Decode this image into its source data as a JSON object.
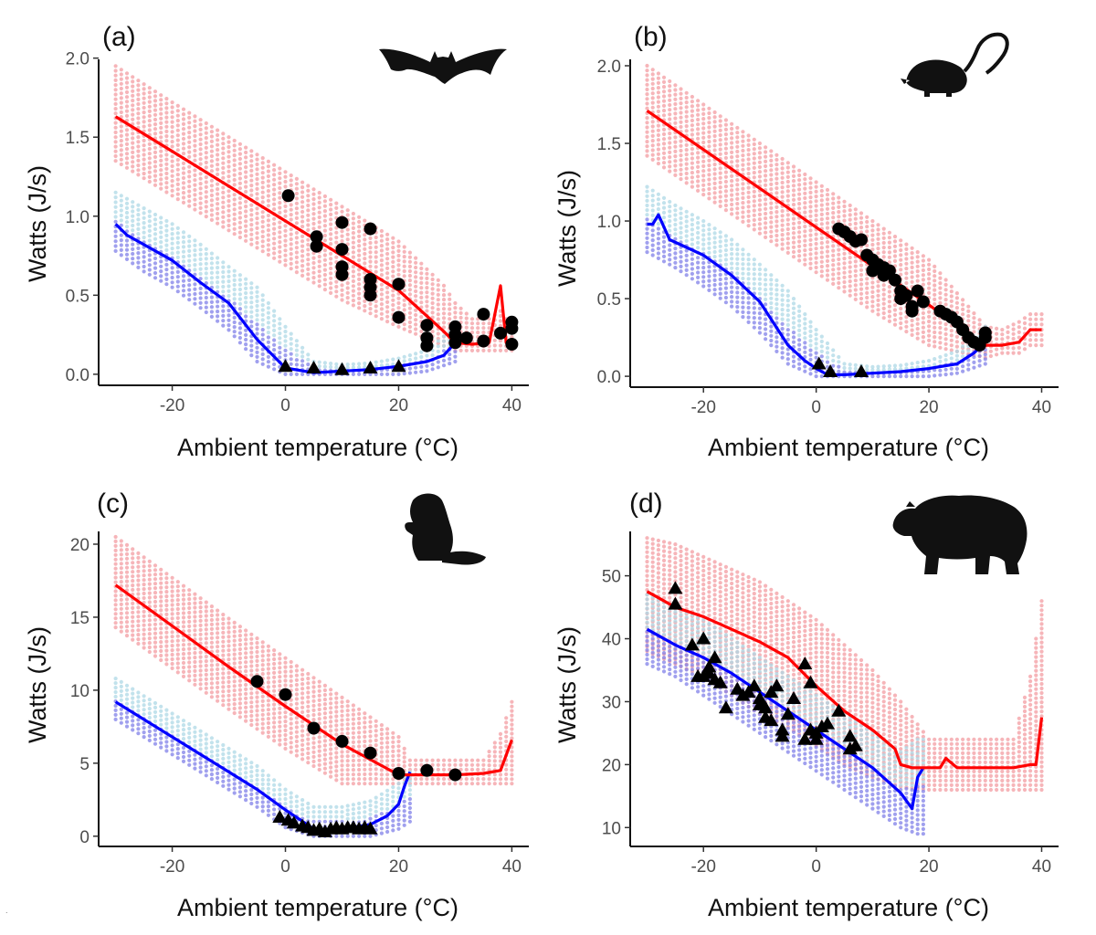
{
  "colors": {
    "hot_line": "#ff0000",
    "hot_band": "#f4a3a8",
    "cold_line": "#0000ff",
    "cold_band_top": "#add8e6",
    "cold_band_bottom": "#8080e8",
    "observed": "#000000"
  },
  "chart_data": [
    {
      "type": "scatter",
      "panel_label": "(a)",
      "silhouette_icon": "bat-icon",
      "xlabel": "Ambient temperature (°C)",
      "ylabel": "Watts (J/s)",
      "xlim": [
        -33,
        43
      ],
      "ylim": [
        -0.07,
        2.05
      ],
      "xticks": [
        -20,
        0,
        20,
        40
      ],
      "yticks": [
        0.0,
        0.5,
        1.0,
        1.5,
        2.0
      ],
      "ytick_labels": [
        "0.0",
        "0.5",
        "1.0",
        "1.5",
        "2.0"
      ],
      "grid": false,
      "series": [
        {
          "role": "hot_model_line",
          "x": [
            -30,
            -20,
            -10,
            0,
            10,
            20,
            28,
            30,
            33,
            36,
            38,
            39,
            40
          ],
          "y": [
            1.63,
            1.41,
            1.19,
            0.97,
            0.75,
            0.53,
            0.27,
            0.2,
            0.19,
            0.2,
            0.56,
            0.2,
            0.2
          ]
        },
        {
          "role": "hot_band",
          "x": [
            -30,
            -20,
            -10,
            0,
            10,
            20,
            28,
            30,
            33,
            36,
            38,
            39,
            40
          ],
          "y_low": [
            1.35,
            1.13,
            0.91,
            0.69,
            0.47,
            0.3,
            0.18,
            0.15,
            0.15,
            0.15,
            0.15,
            0.15,
            0.15
          ],
          "y_high": [
            1.95,
            1.72,
            1.5,
            1.28,
            1.06,
            0.84,
            0.56,
            0.45,
            0.35,
            0.35,
            0.4,
            0.35,
            0.35
          ]
        },
        {
          "role": "cold_model_line",
          "x": [
            -30,
            -28,
            -25,
            -20,
            -15,
            -10,
            -5,
            0,
            5,
            10,
            15,
            20,
            25,
            28,
            30
          ],
          "y": [
            0.95,
            0.88,
            0.82,
            0.72,
            0.58,
            0.45,
            0.22,
            0.04,
            0.01,
            0.02,
            0.03,
            0.05,
            0.08,
            0.12,
            0.2
          ]
        },
        {
          "role": "cold_band",
          "x": [
            -30,
            -25,
            -20,
            -15,
            -10,
            -5,
            0,
            5,
            10,
            15,
            20,
            25,
            30
          ],
          "y_low": [
            0.78,
            0.65,
            0.55,
            0.42,
            0.28,
            0.08,
            0.0,
            0.0,
            0.0,
            0.0,
            0.0,
            0.02,
            0.08
          ],
          "y_high": [
            1.15,
            1.05,
            0.95,
            0.82,
            0.68,
            0.55,
            0.3,
            0.08,
            0.06,
            0.07,
            0.1,
            0.15,
            0.3
          ]
        },
        {
          "role": "observed_hot",
          "marker": "circle",
          "x": [
            0.5,
            5.5,
            5.5,
            10,
            10,
            10,
            10,
            15,
            15,
            15,
            15,
            20,
            20,
            25,
            25,
            25,
            30,
            30,
            30,
            32,
            35,
            35,
            38,
            40,
            40,
            40
          ],
          "y": [
            1.13,
            0.87,
            0.81,
            0.96,
            0.79,
            0.68,
            0.63,
            0.92,
            0.6,
            0.55,
            0.5,
            0.57,
            0.36,
            0.31,
            0.23,
            0.18,
            0.3,
            0.25,
            0.2,
            0.23,
            0.38,
            0.21,
            0.26,
            0.33,
            0.29,
            0.19
          ]
        },
        {
          "role": "observed_cold",
          "marker": "triangle",
          "x": [
            0,
            5,
            10,
            15,
            20
          ],
          "y": [
            0.05,
            0.04,
            0.03,
            0.04,
            0.05
          ]
        }
      ]
    },
    {
      "type": "scatter",
      "panel_label": "(b)",
      "silhouette_icon": "opossum-icon",
      "xlabel": "Ambient temperature (°C)",
      "ylabel": "Watts (J/s)",
      "xlim": [
        -33,
        43
      ],
      "ylim": [
        -0.07,
        2.1
      ],
      "xticks": [
        -20,
        0,
        20,
        40
      ],
      "yticks": [
        0.0,
        0.5,
        1.0,
        1.5,
        2.0
      ],
      "ytick_labels": [
        "0.0",
        "0.5",
        "1.0",
        "1.5",
        "2.0"
      ],
      "grid": false,
      "series": [
        {
          "role": "hot_model_line",
          "x": [
            -30,
            -20,
            -10,
            0,
            10,
            20,
            30,
            33,
            36,
            38,
            40
          ],
          "y": [
            1.71,
            1.46,
            1.21,
            0.96,
            0.71,
            0.46,
            0.2,
            0.2,
            0.22,
            0.3,
            0.3
          ]
        },
        {
          "role": "hot_band",
          "x": [
            -30,
            -20,
            -10,
            0,
            10,
            20,
            30,
            33,
            36,
            38,
            40
          ],
          "y_low": [
            1.42,
            1.17,
            0.92,
            0.67,
            0.42,
            0.2,
            0.12,
            0.15,
            0.15,
            0.2,
            0.2
          ],
          "y_high": [
            2.0,
            1.75,
            1.5,
            1.25,
            1.0,
            0.75,
            0.32,
            0.3,
            0.35,
            0.4,
            0.4
          ]
        },
        {
          "role": "cold_model_line",
          "x": [
            -30,
            -29,
            -28,
            -26,
            -20,
            -15,
            -10,
            -5,
            -2,
            0,
            2,
            5,
            10,
            15,
            20,
            25,
            28,
            30
          ],
          "y": [
            0.98,
            0.98,
            1.04,
            0.88,
            0.78,
            0.65,
            0.48,
            0.2,
            0.1,
            0.05,
            0.01,
            0.01,
            0.02,
            0.03,
            0.05,
            0.08,
            0.15,
            0.22
          ]
        },
        {
          "role": "cold_band",
          "x": [
            -30,
            -25,
            -20,
            -15,
            -10,
            -5,
            0,
            5,
            10,
            15,
            20,
            25,
            30
          ],
          "y_low": [
            0.8,
            0.7,
            0.58,
            0.45,
            0.28,
            0.08,
            0.0,
            0.0,
            0.0,
            0.0,
            0.0,
            0.02,
            0.08
          ],
          "y_high": [
            1.22,
            1.1,
            1.0,
            0.88,
            0.72,
            0.55,
            0.3,
            0.08,
            0.06,
            0.07,
            0.1,
            0.16,
            0.32
          ]
        },
        {
          "role": "observed_hot",
          "marker": "circle",
          "x": [
            4,
            5,
            6,
            7,
            8,
            9,
            10,
            10,
            11,
            12,
            12,
            13,
            14,
            15,
            15,
            16,
            17,
            17,
            18,
            19,
            22,
            23,
            24,
            25,
            26,
            27,
            28,
            29,
            30,
            30
          ],
          "y": [
            0.95,
            0.93,
            0.9,
            0.87,
            0.88,
            0.78,
            0.68,
            0.75,
            0.72,
            0.7,
            0.65,
            0.68,
            0.62,
            0.55,
            0.5,
            0.52,
            0.45,
            0.42,
            0.55,
            0.48,
            0.42,
            0.4,
            0.38,
            0.35,
            0.3,
            0.25,
            0.22,
            0.2,
            0.28,
            0.25
          ]
        },
        {
          "role": "observed_cold",
          "marker": "triangle",
          "x": [
            0.5,
            2.5,
            8
          ],
          "y": [
            0.08,
            0.03,
            0.03
          ]
        }
      ]
    },
    {
      "type": "scatter",
      "panel_label": "(c)",
      "silhouette_icon": "beaver-icon",
      "xlabel": "Ambient temperature (°C)",
      "ylabel": "Watts (J/s)",
      "xlim": [
        -33,
        43
      ],
      "ylim": [
        -0.7,
        21.5
      ],
      "xticks": [
        -20,
        0,
        20,
        40
      ],
      "yticks": [
        0,
        5,
        10,
        15,
        20
      ],
      "ytick_labels": [
        "0",
        "5",
        "10",
        "15",
        "20"
      ],
      "grid": false,
      "series": [
        {
          "role": "hot_model_line",
          "x": [
            -30,
            -20,
            -10,
            0,
            10,
            20,
            22,
            25,
            30,
            35,
            38,
            40
          ],
          "y": [
            17.2,
            14.4,
            11.6,
            8.9,
            6.3,
            4.2,
            4.2,
            4.2,
            4.2,
            4.3,
            4.5,
            6.6
          ]
        },
        {
          "role": "hot_band",
          "x": [
            -30,
            -20,
            -10,
            0,
            10,
            20,
            22,
            25,
            30,
            35,
            38,
            40
          ],
          "y_low": [
            14.3,
            11.5,
            8.7,
            6.0,
            3.6,
            3.6,
            3.6,
            3.6,
            3.6,
            3.6,
            3.6,
            3.6
          ],
          "y_high": [
            20.5,
            17.7,
            14.9,
            12.2,
            9.5,
            6.8,
            5.2,
            5.2,
            5.2,
            5.2,
            7.0,
            9.2
          ]
        },
        {
          "role": "cold_model_line",
          "x": [
            -30,
            -20,
            -10,
            -5,
            0,
            5,
            8,
            10,
            15,
            18,
            20,
            21,
            22
          ],
          "y": [
            9.2,
            6.8,
            4.4,
            3.2,
            1.8,
            0.5,
            0.4,
            0.5,
            0.8,
            1.4,
            2.2,
            3.4,
            4.4
          ]
        },
        {
          "role": "cold_band",
          "x": [
            -30,
            -20,
            -10,
            -5,
            0,
            5,
            10,
            15,
            20,
            22
          ],
          "y_low": [
            8.0,
            5.6,
            3.2,
            2.0,
            0.6,
            0.0,
            0.0,
            0.0,
            0.5,
            1.0
          ],
          "y_high": [
            10.8,
            8.4,
            6.0,
            4.8,
            3.2,
            2.0,
            2.0,
            2.4,
            3.6,
            4.4
          ]
        },
        {
          "role": "observed_hot",
          "marker": "circle",
          "x": [
            -5,
            0,
            5,
            10,
            15,
            20,
            25,
            30
          ],
          "y": [
            10.6,
            9.7,
            7.4,
            6.5,
            5.7,
            4.3,
            4.5,
            4.2
          ]
        },
        {
          "role": "observed_cold",
          "marker": "triangle",
          "x": [
            -1,
            0.5,
            1.5,
            3,
            4,
            5,
            6,
            7,
            8,
            9,
            10,
            11,
            12,
            13,
            14,
            15
          ],
          "y": [
            1.3,
            1.1,
            0.9,
            0.7,
            0.6,
            0.4,
            0.5,
            0.3,
            0.5,
            0.6,
            0.5,
            0.6,
            0.6,
            0.5,
            0.6,
            0.5
          ]
        }
      ]
    },
    {
      "type": "scatter",
      "panel_label": "(d)",
      "silhouette_icon": "bear-icon",
      "xlabel": "Ambient temperature (°C)",
      "ylabel": "Watts (J/s)",
      "xlim": [
        -33,
        43
      ],
      "ylim": [
        7,
        58.5
      ],
      "xticks": [
        -20,
        0,
        20,
        40
      ],
      "yticks": [
        10,
        20,
        30,
        40,
        50
      ],
      "ytick_labels": [
        "10",
        "20",
        "30",
        "40",
        "50"
      ],
      "grid": false,
      "series": [
        {
          "role": "hot_model_line",
          "x": [
            -30,
            -28,
            -25,
            -20,
            -15,
            -10,
            -5,
            0,
            5,
            10,
            14,
            15,
            17,
            20,
            22,
            23,
            25,
            30,
            35,
            38,
            39,
            40
          ],
          "y": [
            47.5,
            46.5,
            45,
            43.5,
            41.5,
            39.5,
            37,
            32.5,
            28.5,
            25.5,
            22.5,
            20,
            19.5,
            19.5,
            19.5,
            21,
            19.5,
            19.5,
            19.5,
            20,
            20,
            27.5
          ]
        },
        {
          "role": "hot_band",
          "x": [
            -30,
            -25,
            -20,
            -15,
            -10,
            -5,
            0,
            5,
            10,
            15,
            20,
            25,
            30,
            35,
            38,
            40
          ],
          "y_low": [
            38,
            36,
            34,
            31,
            28,
            26,
            23,
            20,
            18,
            16.5,
            16,
            16,
            16,
            16,
            16,
            16
          ],
          "y_high": [
            56,
            55,
            53,
            51,
            49,
            46,
            43,
            39,
            35,
            30,
            24,
            24,
            24,
            24,
            34,
            46
          ]
        },
        {
          "role": "cold_model_line",
          "x": [
            -30,
            -25,
            -20,
            -15,
            -10,
            -5,
            0,
            5,
            10,
            15,
            17,
            18,
            19
          ],
          "y": [
            41.5,
            39,
            37,
            34.5,
            31.5,
            28.5,
            25.5,
            22.5,
            19.5,
            15.5,
            13,
            18,
            19.5
          ]
        },
        {
          "role": "cold_band",
          "x": [
            -30,
            -25,
            -20,
            -15,
            -10,
            -5,
            0,
            5,
            10,
            15,
            18,
            19
          ],
          "y_low": [
            36,
            34,
            31,
            28,
            25,
            22,
            19,
            16,
            13,
            10,
            9,
            9
          ],
          "y_high": [
            47,
            45,
            43,
            40,
            37,
            34,
            31,
            28,
            25,
            22,
            24,
            24
          ]
        },
        {
          "role": "observed_cold",
          "marker": "triangle",
          "x": [
            -25,
            -25,
            -22,
            -21,
            -20,
            -20,
            -19,
            -19,
            -18,
            -18,
            -17,
            -16,
            -14,
            -13,
            -12,
            -11,
            -10,
            -10,
            -9,
            -9,
            -8,
            -8,
            -7,
            -6,
            -6,
            -5,
            -4,
            -2,
            -2,
            -1,
            -1,
            0,
            0,
            1,
            2,
            4,
            6,
            6,
            7
          ],
          "y": [
            48,
            45.5,
            39,
            34,
            40,
            34,
            35.5,
            34.5,
            37,
            33.5,
            33,
            29,
            32,
            31,
            31.5,
            32.5,
            30.5,
            29.5,
            29,
            27.5,
            31.5,
            27,
            32.5,
            25.5,
            24.5,
            28,
            30.5,
            24,
            36,
            25.5,
            33,
            25,
            24,
            26,
            26.5,
            28.5,
            24.5,
            22.5,
            23
          ]
        }
      ]
    }
  ]
}
